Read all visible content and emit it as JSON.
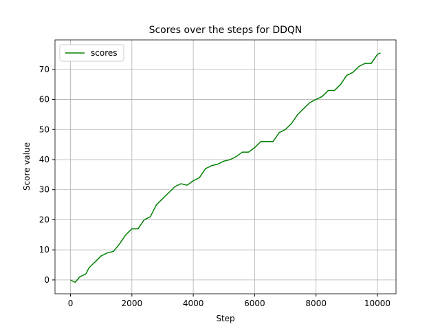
{
  "chart_data": {
    "type": "line",
    "title": "Scores over the steps for DDQN",
    "xlabel": "Step",
    "ylabel": "Score value",
    "x": [
      0,
      150,
      300,
      500,
      600,
      800,
      1000,
      1200,
      1400,
      1600,
      1800,
      2000,
      2200,
      2400,
      2600,
      2800,
      3000,
      3200,
      3400,
      3600,
      3800,
      4000,
      4200,
      4400,
      4600,
      4800,
      5000,
      5200,
      5400,
      5600,
      5800,
      6000,
      6200,
      6400,
      6600,
      6800,
      7000,
      7200,
      7400,
      7600,
      7800,
      8000,
      8200,
      8400,
      8600,
      8800,
      9000,
      9200,
      9400,
      9600,
      9800,
      10000,
      10100
    ],
    "series": [
      {
        "name": "scores",
        "color": "#008000",
        "values": [
          0,
          -0.8,
          1,
          2,
          4,
          6,
          8,
          9,
          9.5,
          12,
          15,
          17,
          17,
          20,
          21,
          25,
          27,
          29,
          31,
          32,
          31.5,
          33,
          34,
          37,
          38,
          38.5,
          39.5,
          40,
          41,
          42.5,
          42.5,
          44,
          46,
          46,
          46,
          49,
          50,
          52,
          55,
          57,
          59,
          60,
          61,
          63,
          63,
          65,
          68,
          69,
          71,
          72,
          72,
          75,
          75.5
        ]
      }
    ],
    "xlim": [
      -505,
      10605
    ],
    "ylim": [
      -4.6,
      79.8
    ],
    "xticks": [
      0,
      2000,
      4000,
      6000,
      8000,
      10000
    ],
    "yticks": [
      0,
      10,
      20,
      30,
      40,
      50,
      60,
      70
    ],
    "grid": true,
    "legend": "upper left"
  }
}
